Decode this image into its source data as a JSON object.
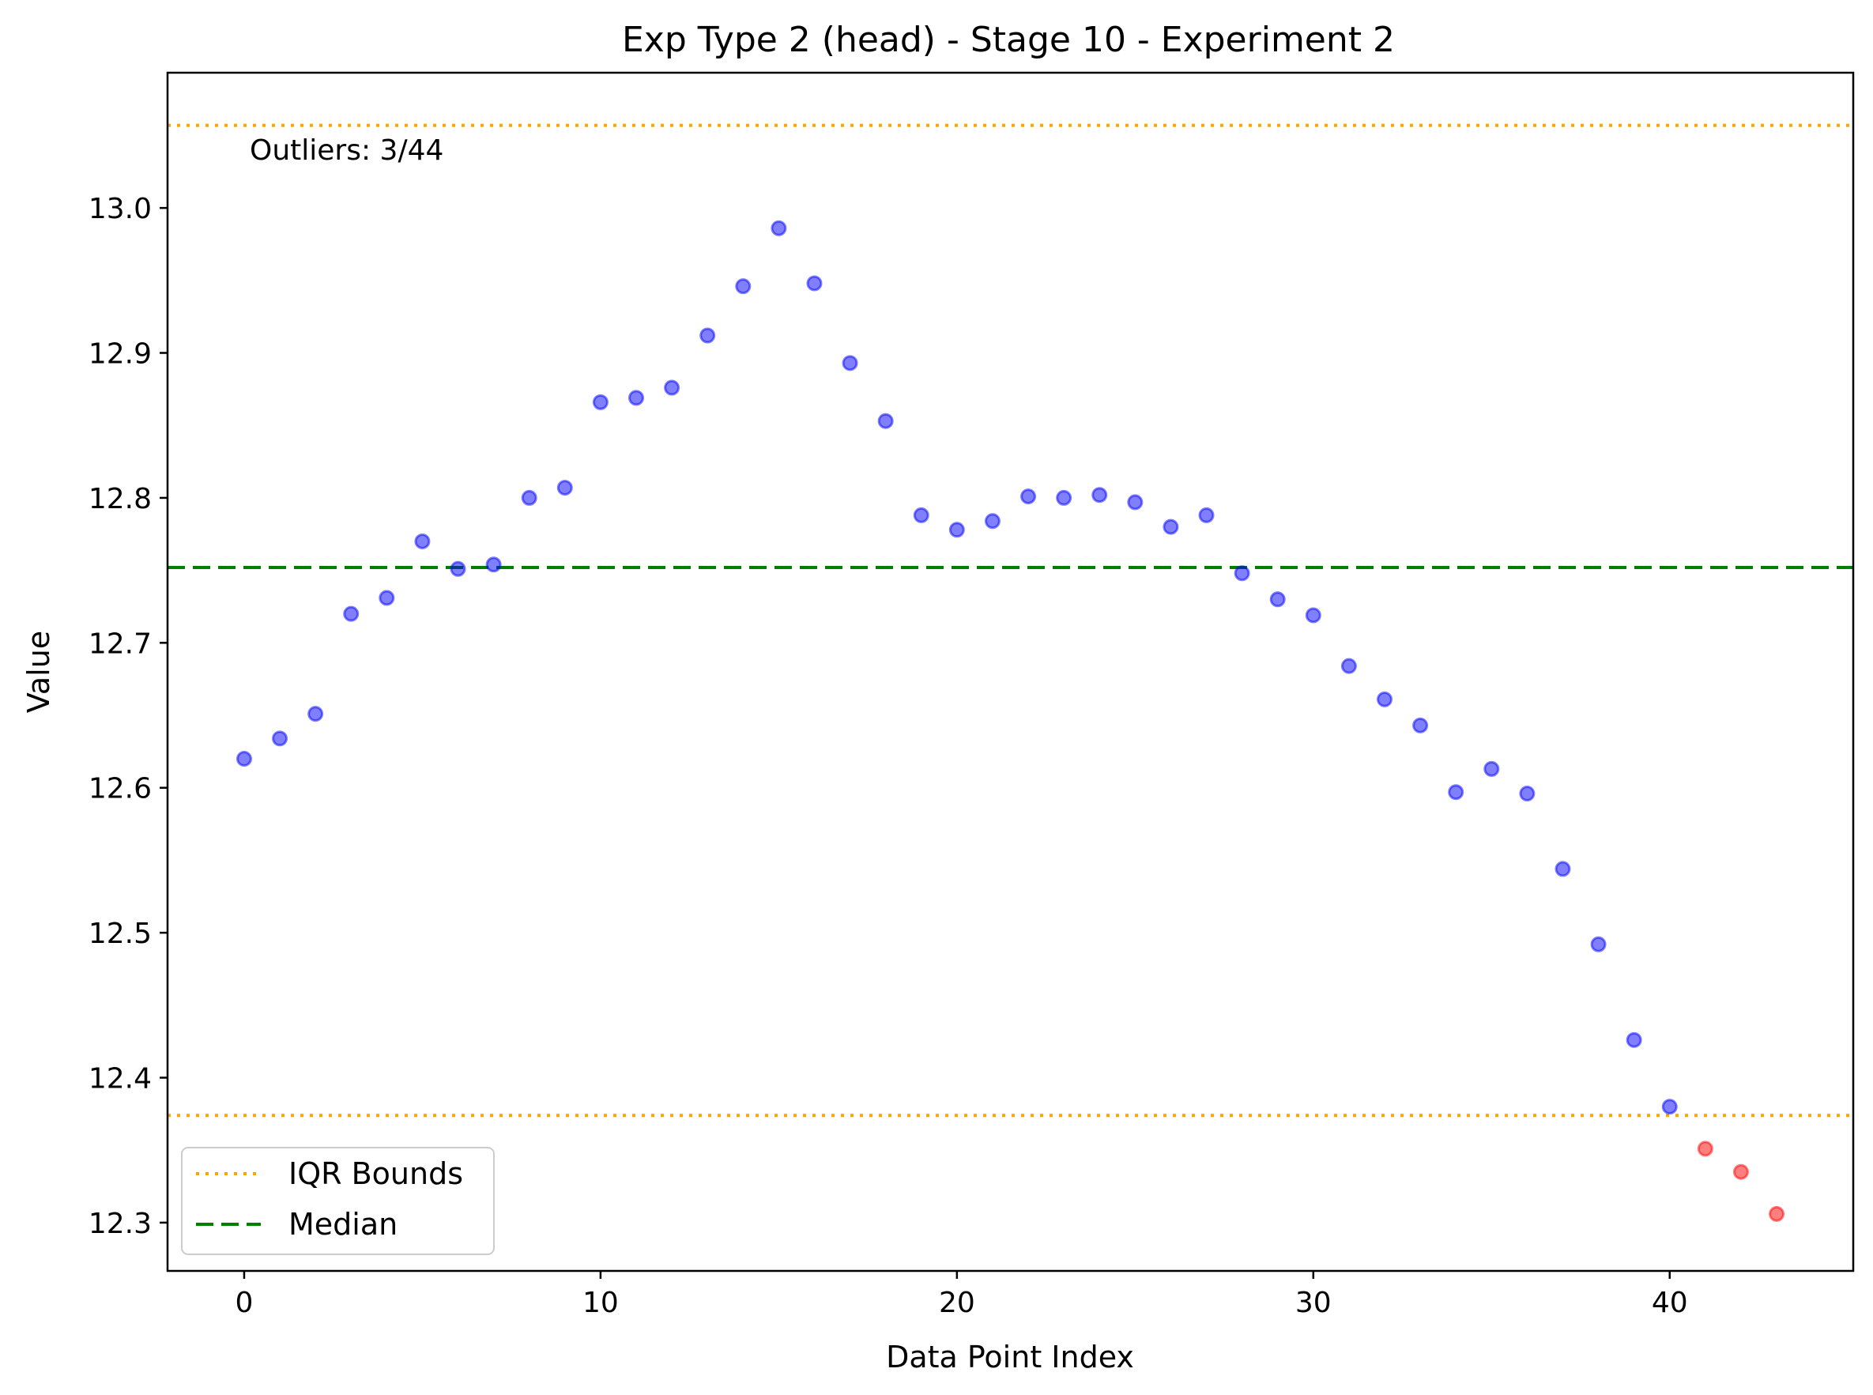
{
  "chart_data": {
    "type": "scatter",
    "title": "Exp Type 2 (head) - Stage 10 - Experiment 2",
    "xlabel": "Data Point Index",
    "ylabel": "Value",
    "xlim": [
      -2.15,
      45.15
    ],
    "ylim": [
      12.2667,
      13.0933
    ],
    "xticks": [
      0,
      10,
      20,
      30,
      40
    ],
    "yticks": [
      12.3,
      12.4,
      12.5,
      12.6,
      12.7,
      12.8,
      12.9,
      13.0
    ],
    "xtick_labels": [
      "0",
      "10",
      "20",
      "30",
      "40"
    ],
    "ytick_labels": [
      "12.3",
      "12.4",
      "12.5",
      "12.6",
      "12.7",
      "12.8",
      "12.9",
      "13.0"
    ],
    "grid": false,
    "legend_position": "lower-left",
    "annotation": "Outliers: 3/44",
    "reference_lines": [
      {
        "legend_label": "IQR Bounds",
        "kind": "iqr-upper",
        "y": 13.057,
        "style": "dotted",
        "color": "#ffa500"
      },
      {
        "kind": "iqr-lower",
        "y": 12.374,
        "style": "dotted",
        "color": "#ffa500"
      },
      {
        "legend_label": "Median",
        "kind": "median",
        "y": 12.752,
        "style": "dashed",
        "color": "#008000"
      }
    ],
    "legend": [
      {
        "label": "IQR Bounds",
        "style": "dotted",
        "color": "#ffa500"
      },
      {
        "label": "Median",
        "style": "dashed",
        "color": "#008000"
      }
    ],
    "series": [
      {
        "role": "normal",
        "color": "#0000ff",
        "points": [
          [
            0,
            12.62
          ],
          [
            1,
            12.634
          ],
          [
            2,
            12.651
          ],
          [
            3,
            12.72
          ],
          [
            4,
            12.731
          ],
          [
            5,
            12.77
          ],
          [
            6,
            12.751
          ],
          [
            7,
            12.754
          ],
          [
            8,
            12.8
          ],
          [
            9,
            12.807
          ],
          [
            10,
            12.866
          ],
          [
            11,
            12.869
          ],
          [
            12,
            12.876
          ],
          [
            13,
            12.912
          ],
          [
            14,
            12.946
          ],
          [
            15,
            12.986
          ],
          [
            16,
            12.948
          ],
          [
            17,
            12.893
          ],
          [
            18,
            12.853
          ],
          [
            19,
            12.788
          ],
          [
            20,
            12.778
          ],
          [
            21,
            12.784
          ],
          [
            22,
            12.801
          ],
          [
            23,
            12.8
          ],
          [
            24,
            12.802
          ],
          [
            25,
            12.797
          ],
          [
            26,
            12.78
          ],
          [
            27,
            12.788
          ],
          [
            28,
            12.748
          ],
          [
            29,
            12.73
          ],
          [
            30,
            12.719
          ],
          [
            31,
            12.684
          ],
          [
            32,
            12.661
          ],
          [
            33,
            12.643
          ],
          [
            34,
            12.597
          ],
          [
            35,
            12.613
          ],
          [
            36,
            12.596
          ],
          [
            37,
            12.544
          ],
          [
            38,
            12.492
          ],
          [
            39,
            12.426
          ],
          [
            40,
            12.38
          ]
        ]
      },
      {
        "role": "outlier",
        "color": "#ff0000",
        "points": [
          [
            41,
            12.351
          ],
          [
            42,
            12.335
          ],
          [
            43,
            12.306
          ]
        ]
      }
    ]
  }
}
